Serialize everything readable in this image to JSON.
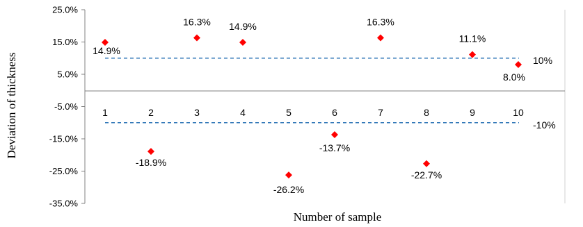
{
  "chart_data": {
    "type": "scatter",
    "xlabel": "Number of sample",
    "ylabel": "Deviation of thickness",
    "ylim": [
      -35,
      25
    ],
    "y_ticks": [
      25,
      15,
      5,
      -5,
      -15,
      -25,
      -35
    ],
    "y_tick_labels": [
      "25.0%",
      "15.0%",
      "5.0%",
      "-5.0%",
      "-15.0%",
      "-25.0%",
      "-35.0%"
    ],
    "categories": [
      "1",
      "2",
      "3",
      "4",
      "5",
      "6",
      "7",
      "8",
      "9",
      "10"
    ],
    "x": [
      1,
      2,
      3,
      4,
      5,
      6,
      7,
      8,
      9,
      10
    ],
    "values": [
      14.9,
      -18.9,
      16.3,
      14.9,
      -26.2,
      -13.7,
      16.3,
      -22.7,
      11.1,
      8.0
    ],
    "data_labels": [
      "14.9%",
      "-18.9%",
      "16.3%",
      "14.9%",
      "-26.2%",
      "-13.7%",
      "16.3%",
      "-22.7%",
      "11.1%",
      "8.0%"
    ],
    "marker": "diamond",
    "marker_color": "#ff0000",
    "reference_lines": [
      {
        "value": 10,
        "label": "10%",
        "style": "dashed",
        "color": "#2e75b6"
      },
      {
        "value": -10,
        "label": "-10%",
        "style": "dashed",
        "color": "#2e75b6"
      }
    ],
    "grid": false,
    "legend": "none"
  }
}
